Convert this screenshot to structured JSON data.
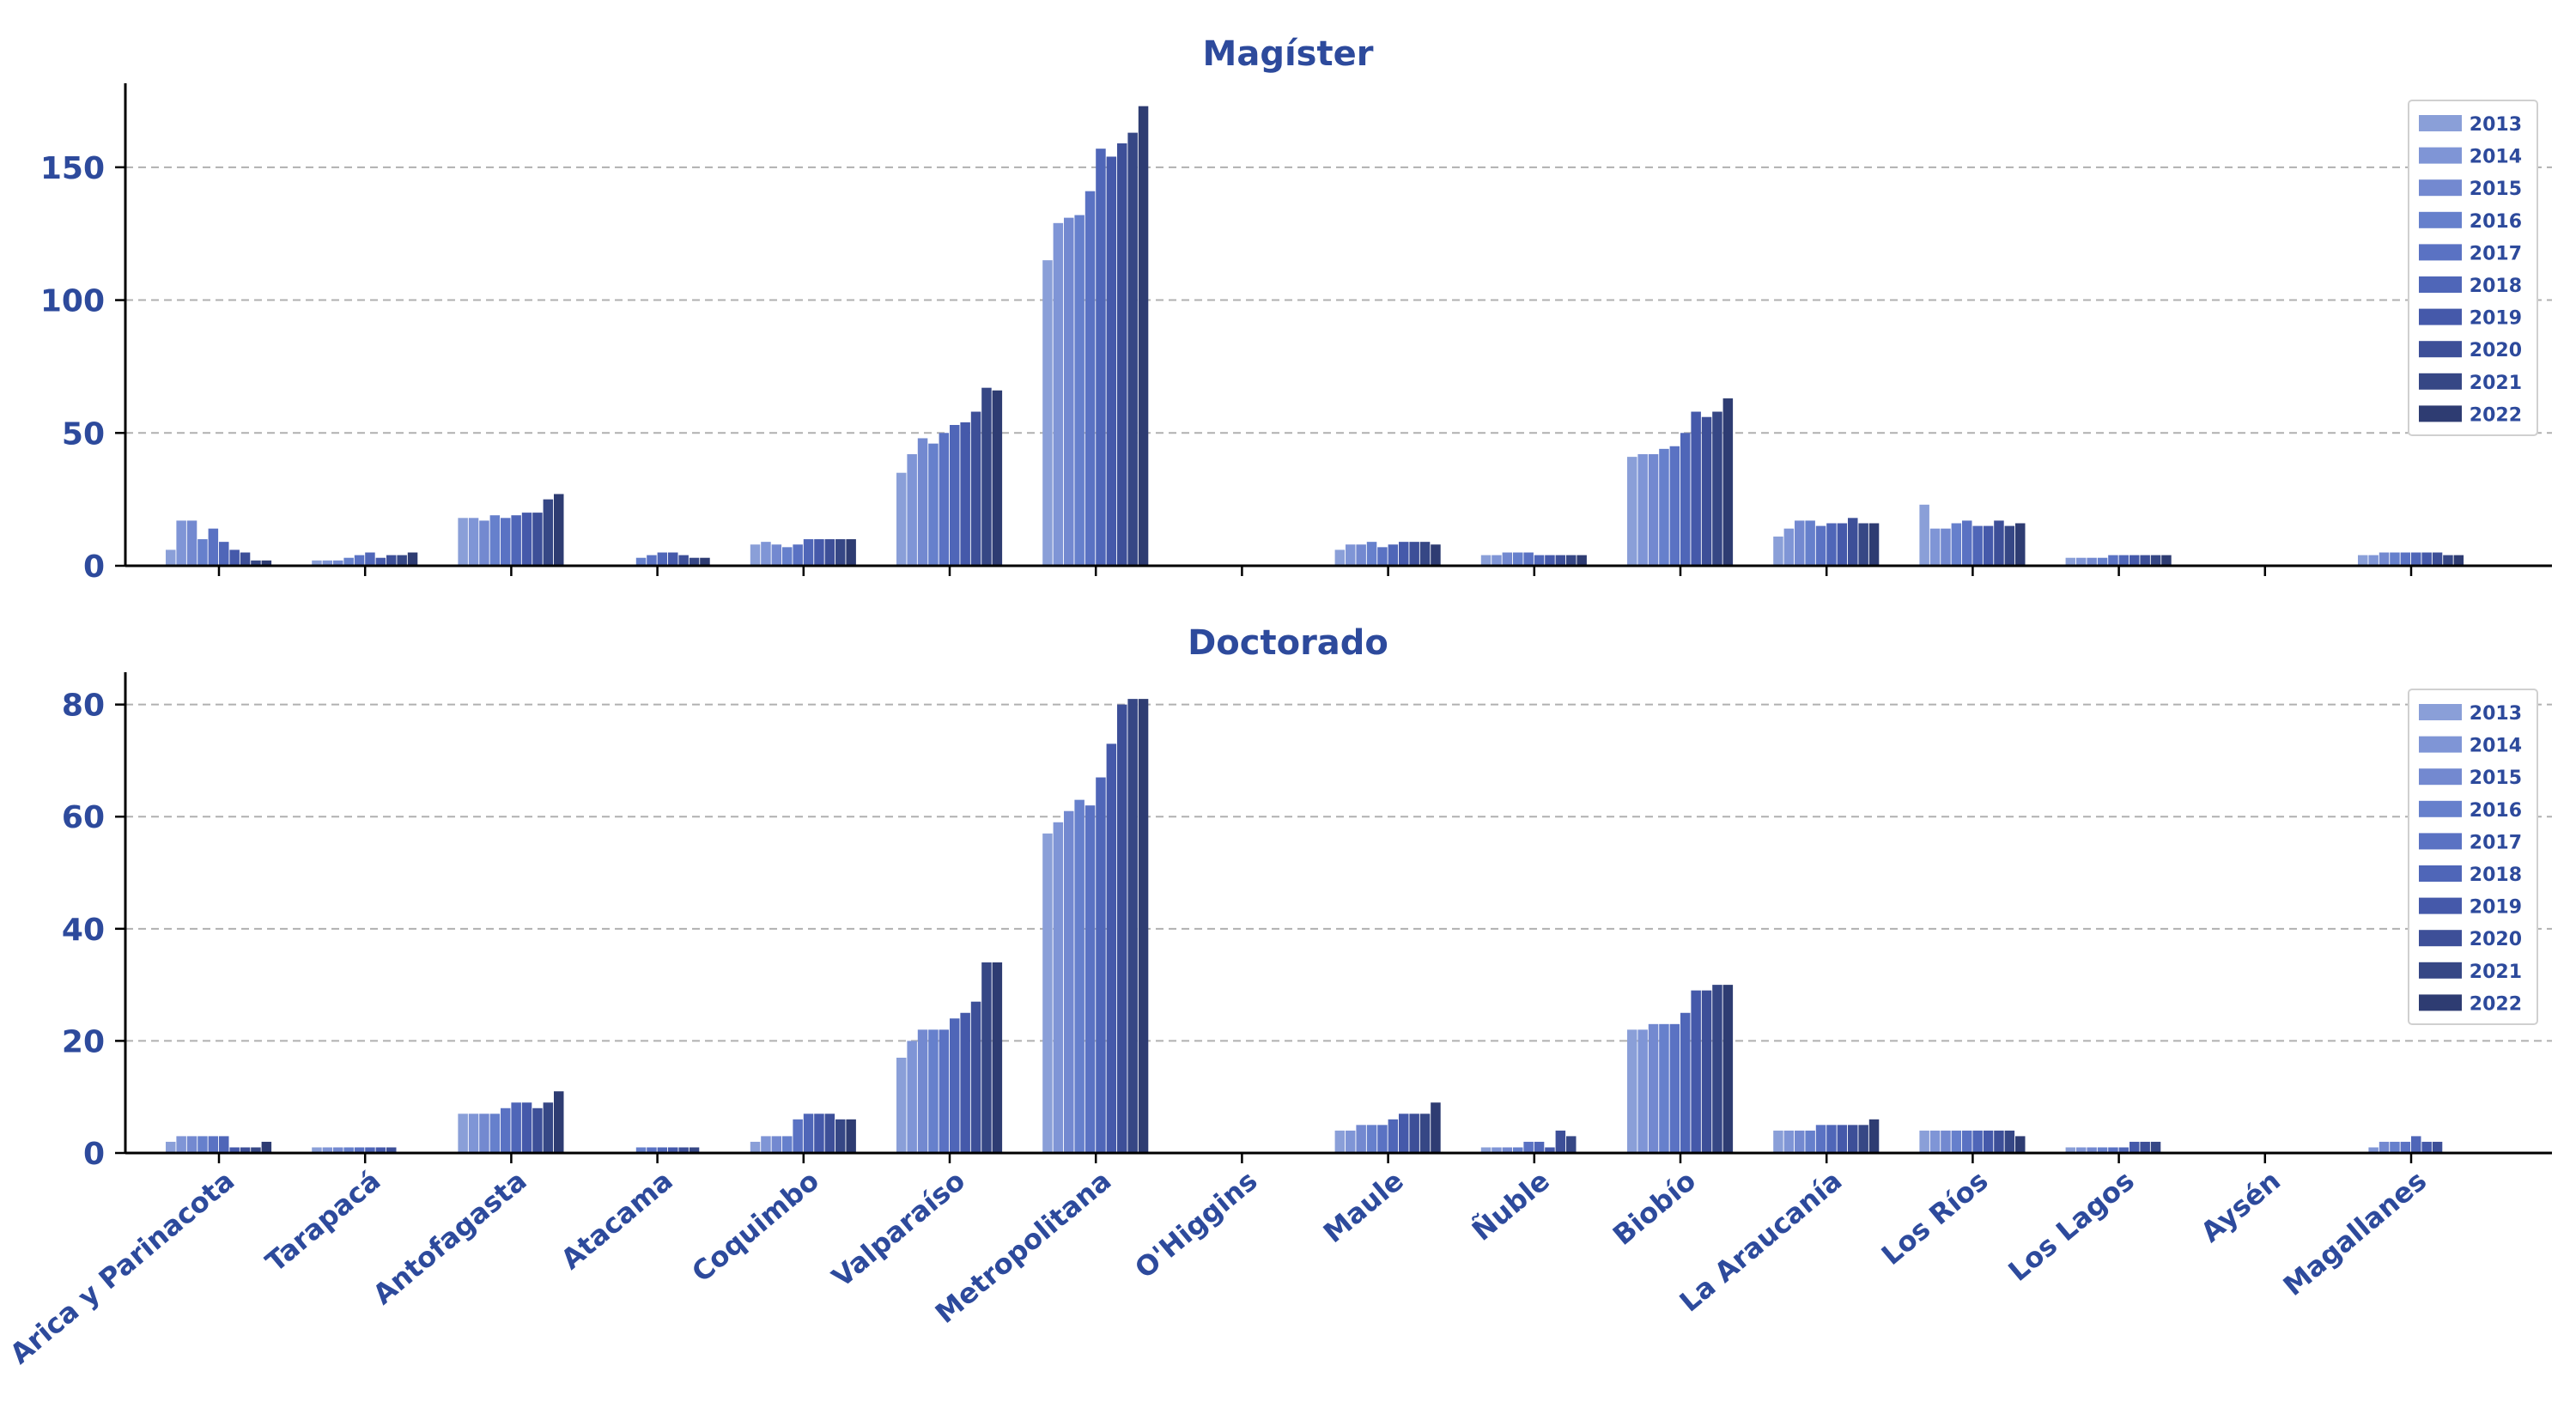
{
  "chart_data": [
    {
      "type": "bar",
      "title": "Magíster",
      "xlabel": "",
      "ylabel": "",
      "ylim": [
        0,
        180
      ],
      "yticks": [
        0,
        50,
        100,
        150
      ],
      "grid": "horizontal dashed",
      "legend_position": "top-right",
      "categories": [
        "Arica y Parinacota",
        "Tarapacá",
        "Antofagasta",
        "Atacama",
        "Coquimbo",
        "Valparaíso",
        "Metropolitana",
        "O'Higgins",
        "Maule",
        "Ñuble",
        "Biobío",
        "La Araucanía",
        "Los Ríos",
        "Los Lagos",
        "Aysén",
        "Magallanes"
      ],
      "series": [
        {
          "name": "2013",
          "values": [
            6,
            2,
            18,
            0,
            8,
            35,
            115,
            0,
            6,
            4,
            41,
            11,
            23,
            3,
            0,
            4
          ]
        },
        {
          "name": "2014",
          "values": [
            17,
            2,
            18,
            0,
            9,
            42,
            129,
            0,
            8,
            4,
            42,
            14,
            14,
            3,
            0,
            4
          ]
        },
        {
          "name": "2015",
          "values": [
            17,
            2,
            17,
            0,
            8,
            48,
            131,
            0,
            8,
            5,
            42,
            17,
            14,
            3,
            0,
            5
          ]
        },
        {
          "name": "2016",
          "values": [
            10,
            3,
            19,
            3,
            7,
            46,
            132,
            0,
            9,
            5,
            44,
            17,
            16,
            3,
            0,
            5
          ]
        },
        {
          "name": "2017",
          "values": [
            14,
            4,
            18,
            4,
            8,
            50,
            141,
            0,
            7,
            5,
            45,
            15,
            17,
            4,
            0,
            5
          ]
        },
        {
          "name": "2018",
          "values": [
            9,
            5,
            19,
            5,
            10,
            53,
            157,
            0,
            8,
            4,
            50,
            16,
            15,
            4,
            0,
            5
          ]
        },
        {
          "name": "2019",
          "values": [
            6,
            3,
            20,
            5,
            10,
            54,
            154,
            0,
            9,
            4,
            58,
            16,
            15,
            4,
            0,
            5
          ]
        },
        {
          "name": "2020",
          "values": [
            5,
            4,
            20,
            4,
            10,
            58,
            159,
            0,
            9,
            4,
            56,
            18,
            17,
            4,
            0,
            5
          ]
        },
        {
          "name": "2021",
          "values": [
            2,
            4,
            25,
            3,
            10,
            67,
            163,
            0,
            9,
            4,
            58,
            16,
            15,
            4,
            0,
            4
          ]
        },
        {
          "name": "2022",
          "values": [
            2,
            5,
            27,
            3,
            10,
            66,
            173,
            0,
            8,
            4,
            63,
            16,
            16,
            4,
            0,
            4
          ]
        }
      ]
    },
    {
      "type": "bar",
      "title": "Doctorado",
      "xlabel": "",
      "ylabel": "",
      "ylim": [
        0,
        85
      ],
      "yticks": [
        0,
        20,
        40,
        60,
        80
      ],
      "grid": "horizontal dashed",
      "legend_position": "top-right",
      "categories": [
        "Arica y Parinacota",
        "Tarapacá",
        "Antofagasta",
        "Atacama",
        "Coquimbo",
        "Valparaíso",
        "Metropolitana",
        "O'Higgins",
        "Maule",
        "Ñuble",
        "Biobío",
        "La Araucanía",
        "Los Ríos",
        "Los Lagos",
        "Aysén",
        "Magallanes"
      ],
      "series": [
        {
          "name": "2013",
          "values": [
            2,
            1,
            7,
            0,
            2,
            17,
            57,
            0,
            4,
            1,
            22,
            4,
            4,
            1,
            0,
            0
          ]
        },
        {
          "name": "2014",
          "values": [
            3,
            1,
            7,
            0,
            3,
            20,
            59,
            0,
            4,
            1,
            22,
            4,
            4,
            1,
            0,
            1
          ]
        },
        {
          "name": "2015",
          "values": [
            3,
            1,
            7,
            0,
            3,
            22,
            61,
            0,
            5,
            1,
            23,
            4,
            4,
            1,
            0,
            2
          ]
        },
        {
          "name": "2016",
          "values": [
            3,
            1,
            7,
            1,
            3,
            22,
            63,
            0,
            5,
            1,
            23,
            4,
            4,
            1,
            0,
            2
          ]
        },
        {
          "name": "2017",
          "values": [
            3,
            1,
            8,
            1,
            6,
            22,
            62,
            0,
            5,
            2,
            23,
            5,
            4,
            1,
            0,
            2
          ]
        },
        {
          "name": "2018",
          "values": [
            3,
            1,
            9,
            1,
            7,
            24,
            67,
            0,
            6,
            2,
            25,
            5,
            4,
            1,
            0,
            3
          ]
        },
        {
          "name": "2019",
          "values": [
            1,
            1,
            9,
            1,
            7,
            25,
            73,
            0,
            7,
            1,
            29,
            5,
            4,
            2,
            0,
            2
          ]
        },
        {
          "name": "2020",
          "values": [
            1,
            1,
            8,
            1,
            7,
            27,
            80,
            0,
            7,
            4,
            29,
            5,
            4,
            2,
            0,
            2
          ]
        },
        {
          "name": "2021",
          "values": [
            1,
            0,
            9,
            1,
            6,
            34,
            81,
            0,
            7,
            3,
            30,
            5,
            4,
            2,
            0,
            0
          ]
        },
        {
          "name": "2022",
          "values": [
            2,
            0,
            11,
            0,
            6,
            34,
            81,
            0,
            9,
            0,
            30,
            6,
            3,
            0,
            0,
            0
          ]
        }
      ]
    }
  ],
  "colors": [
    "#8a9fd8",
    "#7f95d6",
    "#7389d0",
    "#6680cc",
    "#5a72c3",
    "#4f66b8",
    "#4559aa",
    "#3d4f98",
    "#364785",
    "#2e3c72"
  ],
  "accent_text": "#2d4a9c",
  "axis_color": "#000000",
  "grid_color": "#b0b0b0"
}
